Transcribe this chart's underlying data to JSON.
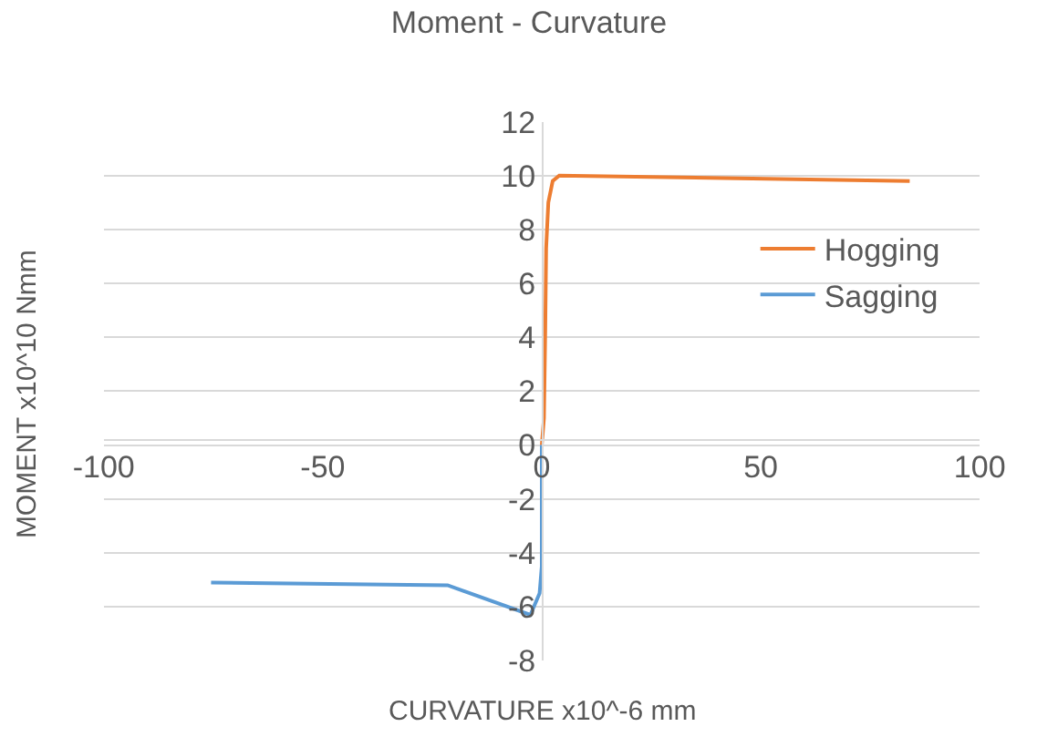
{
  "chart_data": {
    "type": "line",
    "title": "Moment - Curvature",
    "xlabel": "CURVATURE x10^-6 mm",
    "ylabel": "MOMENT x10^10 Nmm",
    "series": [
      {
        "name": "Hogging",
        "color": "#ed7d31",
        "x": [
          0,
          0.5,
          0.8,
          1.0,
          1.2,
          1.5,
          2.5,
          4,
          84
        ],
        "values": [
          0,
          1,
          4.3,
          7.3,
          8,
          9,
          9.8,
          10.0,
          9.8
        ]
      },
      {
        "name": "Sagging",
        "color": "#5b9bd5",
        "x": [
          0,
          0,
          -0.5,
          -2.6,
          -21.5,
          -75.5
        ],
        "values": [
          0,
          -4.5,
          -5.5,
          -6.3,
          -5.2,
          -5.1
        ]
      }
    ],
    "xlim": [
      -100,
      100
    ],
    "xticks": [
      -100,
      -50,
      0,
      50,
      100
    ],
    "ylim": [
      -8,
      12
    ],
    "yticks": [
      -8,
      -6,
      -4,
      -2,
      0,
      2,
      4,
      6,
      8,
      10,
      12
    ],
    "grid": "y",
    "legend": "right",
    "marker": "none",
    "line_style": "solid"
  }
}
